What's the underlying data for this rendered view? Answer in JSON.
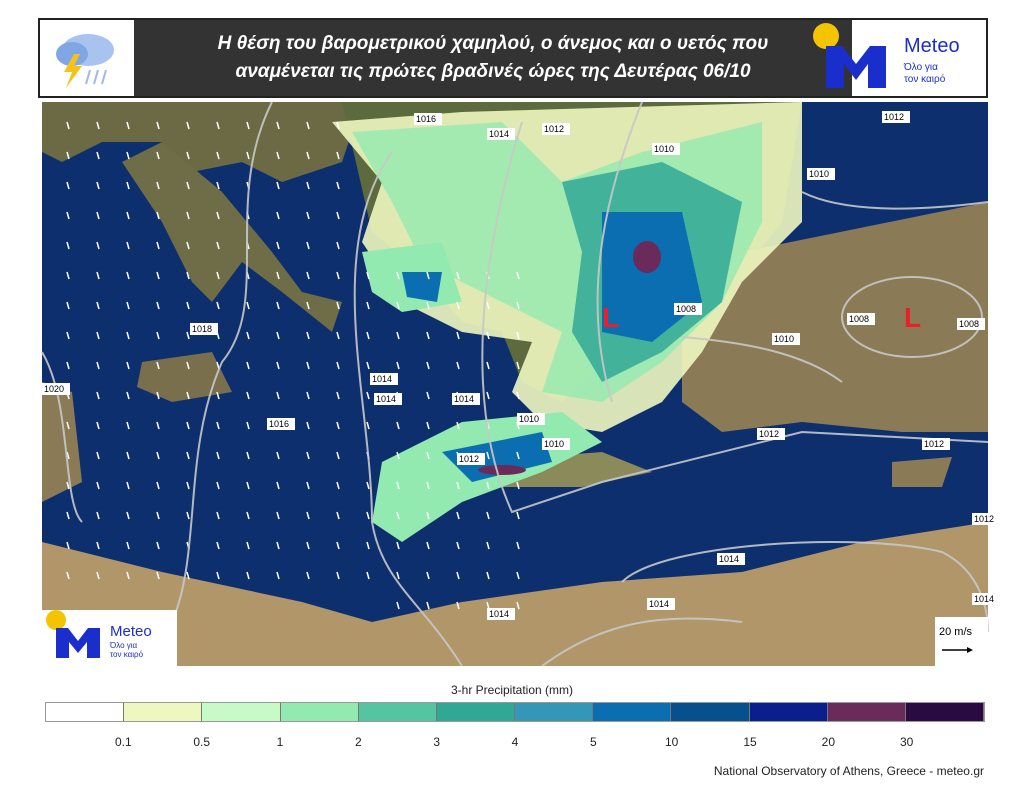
{
  "header": {
    "title_line1": "Η θέση του βαρομετρικού χαμηλού, ο άνεμος και ο υετός που",
    "title_line2": "αναμένεται τις πρώτες βραδινές ώρες της Δευτέρας 06/10",
    "weather_icon": "thunderstorm-rain-icon",
    "logo": {
      "name": "Meteo",
      "tagline_line1": "Όλο για",
      "tagline_line2": "τον καιρό"
    }
  },
  "map": {
    "low_pressure_marker": "L",
    "isobar_labels": [
      "1016",
      "1014",
      "1012",
      "1010",
      "1010",
      "1012",
      "1008",
      "1008",
      "1008",
      "1010",
      "1018",
      "1016",
      "1014",
      "1014",
      "1020",
      "1014",
      "1012",
      "1010",
      "1010",
      "1012",
      "1012",
      "1014",
      "1014",
      "1014",
      "1012",
      "1014"
    ],
    "wind_scale_label": "20 m/s",
    "logo": {
      "name": "Meteo",
      "tagline_line1": "Όλο για",
      "tagline_line2": "τον καιρό"
    },
    "colors": {
      "sea": "#0d2f6e",
      "land": "#8a7a55",
      "low_marker": "#e8202a",
      "isobar": "#c8c8c8"
    }
  },
  "legend": {
    "title": "3-hr Precipitation (mm)",
    "colors": [
      "#ffffff",
      "#eef7bf",
      "#c8fac8",
      "#93eab0",
      "#55c4a0",
      "#31a896",
      "#3497b8",
      "#0a6eb0",
      "#06508e",
      "#0a1e8e",
      "#6a2a5a",
      "#2a0a40"
    ],
    "ticks": [
      "0.1",
      "0.5",
      "1",
      "2",
      "3",
      "4",
      "5",
      "10",
      "15",
      "20",
      "30"
    ]
  },
  "footer": {
    "credit": "National Observatory of Athens, Greece - meteo.gr"
  }
}
